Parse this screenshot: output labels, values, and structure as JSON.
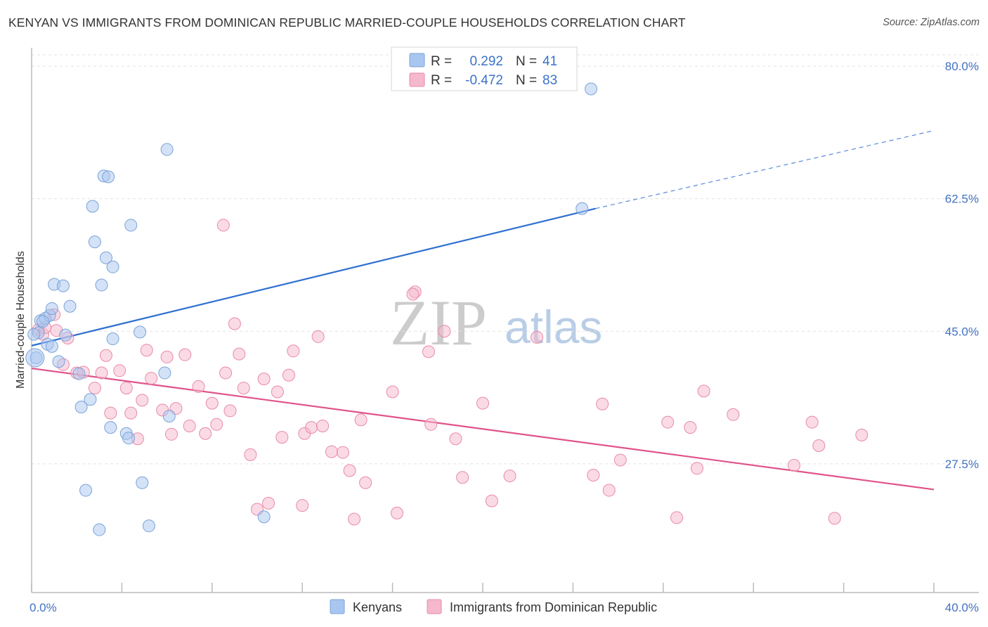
{
  "title": "KENYAN VS IMMIGRANTS FROM DOMINICAN REPUBLIC MARRIED-COUPLE HOUSEHOLDS CORRELATION CHART",
  "source": "Source: ZipAtlas.com",
  "watermark": {
    "zip": "ZIP",
    "atlas": "atlas"
  },
  "legend_top": [
    {
      "r_label": "R =",
      "r_value": "0.292",
      "n_label": "N =",
      "n_value": "41",
      "color": "#a9c6f0"
    },
    {
      "r_label": "R =",
      "r_value": "-0.472",
      "n_label": "N =",
      "n_value": "83",
      "color": "#f5b8cc"
    }
  ],
  "legend_bottom": [
    {
      "label": "Kenyans",
      "color": "#a9c6f0"
    },
    {
      "label": "Immigrants from Dominican Republic",
      "color": "#f5b8cc"
    }
  ],
  "chart_data": {
    "type": "scatter",
    "title": "KENYAN VS IMMIGRANTS FROM DOMINICAN REPUBLIC MARRIED-COUPLE HOUSEHOLDS CORRELATION CHART",
    "xlabel": "",
    "ylabel": "Married-couple Households",
    "xlim": [
      0,
      40
    ],
    "ylim": [
      10.5,
      81.5
    ],
    "x_tick_labels": [
      "0.0%",
      "40.0%"
    ],
    "y_ticks": [
      80.0,
      62.5,
      45.0,
      27.5
    ],
    "y_tick_labels": [
      "80.0%",
      "62.5%",
      "45.0%",
      "27.5%"
    ],
    "grid": true,
    "series": [
      {
        "name": "Kenyans",
        "color": "#a9c6f0",
        "stroke": "#7aa3d8",
        "trend": {
          "x0": 0,
          "y0": 43.1,
          "x1": 25.0,
          "y1": 61.2,
          "dash_to_x": 40.0,
          "dash_to_y": 71.5,
          "color": "#2e6fd0"
        },
        "points": [
          [
            0.2,
            41.5
          ],
          [
            0.3,
            44.8
          ],
          [
            0.4,
            46.4
          ],
          [
            0.6,
            46.7
          ],
          [
            0.7,
            43.3
          ],
          [
            0.8,
            47.1
          ],
          [
            0.9,
            48.0
          ],
          [
            1.0,
            51.2
          ],
          [
            1.2,
            41.0
          ],
          [
            1.4,
            51.0
          ],
          [
            1.5,
            44.5
          ],
          [
            1.7,
            48.3
          ],
          [
            2.1,
            39.4
          ],
          [
            2.2,
            35.0
          ],
          [
            2.4,
            24.0
          ],
          [
            2.6,
            36.0
          ],
          [
            2.7,
            61.5
          ],
          [
            2.8,
            56.8
          ],
          [
            3.0,
            18.8
          ],
          [
            3.1,
            51.1
          ],
          [
            3.2,
            65.5
          ],
          [
            3.3,
            54.7
          ],
          [
            3.4,
            65.4
          ],
          [
            3.5,
            32.3
          ],
          [
            3.6,
            53.5
          ],
          [
            3.6,
            44.0
          ],
          [
            4.2,
            31.5
          ],
          [
            4.3,
            30.9
          ],
          [
            4.4,
            59.0
          ],
          [
            4.8,
            44.9
          ],
          [
            4.9,
            25.0
          ],
          [
            5.2,
            19.3
          ],
          [
            5.9,
            39.5
          ],
          [
            6.0,
            69.0
          ],
          [
            6.1,
            33.8
          ],
          [
            10.3,
            20.5
          ],
          [
            24.4,
            61.2
          ],
          [
            24.8,
            77.0
          ],
          [
            0.1,
            44.6
          ],
          [
            0.5,
            46.3
          ],
          [
            0.9,
            43.0
          ]
        ]
      },
      {
        "name": "Immigrants from Dominican Republic",
        "color": "#f5b8cc",
        "stroke": "#e98aa8",
        "trend": {
          "x0": 0,
          "y0": 40.1,
          "x1": 40.0,
          "y1": 24.1,
          "color": "#e0528a"
        },
        "points": [
          [
            0.3,
            45.2
          ],
          [
            0.5,
            44.6
          ],
          [
            0.6,
            45.5
          ],
          [
            1.0,
            47.2
          ],
          [
            1.1,
            45.1
          ],
          [
            1.4,
            40.6
          ],
          [
            1.6,
            44.1
          ],
          [
            2.0,
            39.5
          ],
          [
            2.3,
            39.6
          ],
          [
            2.8,
            37.5
          ],
          [
            3.1,
            39.5
          ],
          [
            3.3,
            41.8
          ],
          [
            3.5,
            34.2
          ],
          [
            3.9,
            39.8
          ],
          [
            4.2,
            37.5
          ],
          [
            4.4,
            34.2
          ],
          [
            4.7,
            30.8
          ],
          [
            4.9,
            35.9
          ],
          [
            5.1,
            42.5
          ],
          [
            5.3,
            38.8
          ],
          [
            5.8,
            34.6
          ],
          [
            6.0,
            41.6
          ],
          [
            6.2,
            31.4
          ],
          [
            6.4,
            34.8
          ],
          [
            6.8,
            41.9
          ],
          [
            7.0,
            32.5
          ],
          [
            7.4,
            37.7
          ],
          [
            7.7,
            31.5
          ],
          [
            8.0,
            35.5
          ],
          [
            8.2,
            32.7
          ],
          [
            8.5,
            59.0
          ],
          [
            8.6,
            39.5
          ],
          [
            8.8,
            34.5
          ],
          [
            9.0,
            46.0
          ],
          [
            9.2,
            42.0
          ],
          [
            9.4,
            37.5
          ],
          [
            9.7,
            28.7
          ],
          [
            10.0,
            21.5
          ],
          [
            10.3,
            38.7
          ],
          [
            10.5,
            22.3
          ],
          [
            10.9,
            37.0
          ],
          [
            11.1,
            31.0
          ],
          [
            11.4,
            39.2
          ],
          [
            11.6,
            42.4
          ],
          [
            12.0,
            22.0
          ],
          [
            12.1,
            31.5
          ],
          [
            12.4,
            32.3
          ],
          [
            12.7,
            44.3
          ],
          [
            12.9,
            32.5
          ],
          [
            13.3,
            29.1
          ],
          [
            13.8,
            29.0
          ],
          [
            14.1,
            26.6
          ],
          [
            14.3,
            20.2
          ],
          [
            14.6,
            33.3
          ],
          [
            14.8,
            25.0
          ],
          [
            16.0,
            37.0
          ],
          [
            16.2,
            21.0
          ],
          [
            17.0,
            50.2
          ],
          [
            17.6,
            42.3
          ],
          [
            17.7,
            32.7
          ],
          [
            18.3,
            45.0
          ],
          [
            18.8,
            30.8
          ],
          [
            19.1,
            25.7
          ],
          [
            20.0,
            35.5
          ],
          [
            20.4,
            22.6
          ],
          [
            21.2,
            25.9
          ],
          [
            22.4,
            44.2
          ],
          [
            24.9,
            26.0
          ],
          [
            25.3,
            35.4
          ],
          [
            25.6,
            24.0
          ],
          [
            26.1,
            28.0
          ],
          [
            28.2,
            33.0
          ],
          [
            28.6,
            20.4
          ],
          [
            29.2,
            32.3
          ],
          [
            29.5,
            26.9
          ],
          [
            29.8,
            37.1
          ],
          [
            31.1,
            34.0
          ],
          [
            33.8,
            27.3
          ],
          [
            34.6,
            33.0
          ],
          [
            34.9,
            29.9
          ],
          [
            35.6,
            20.3
          ],
          [
            36.8,
            31.3
          ],
          [
            16.9,
            49.9
          ]
        ]
      }
    ]
  }
}
